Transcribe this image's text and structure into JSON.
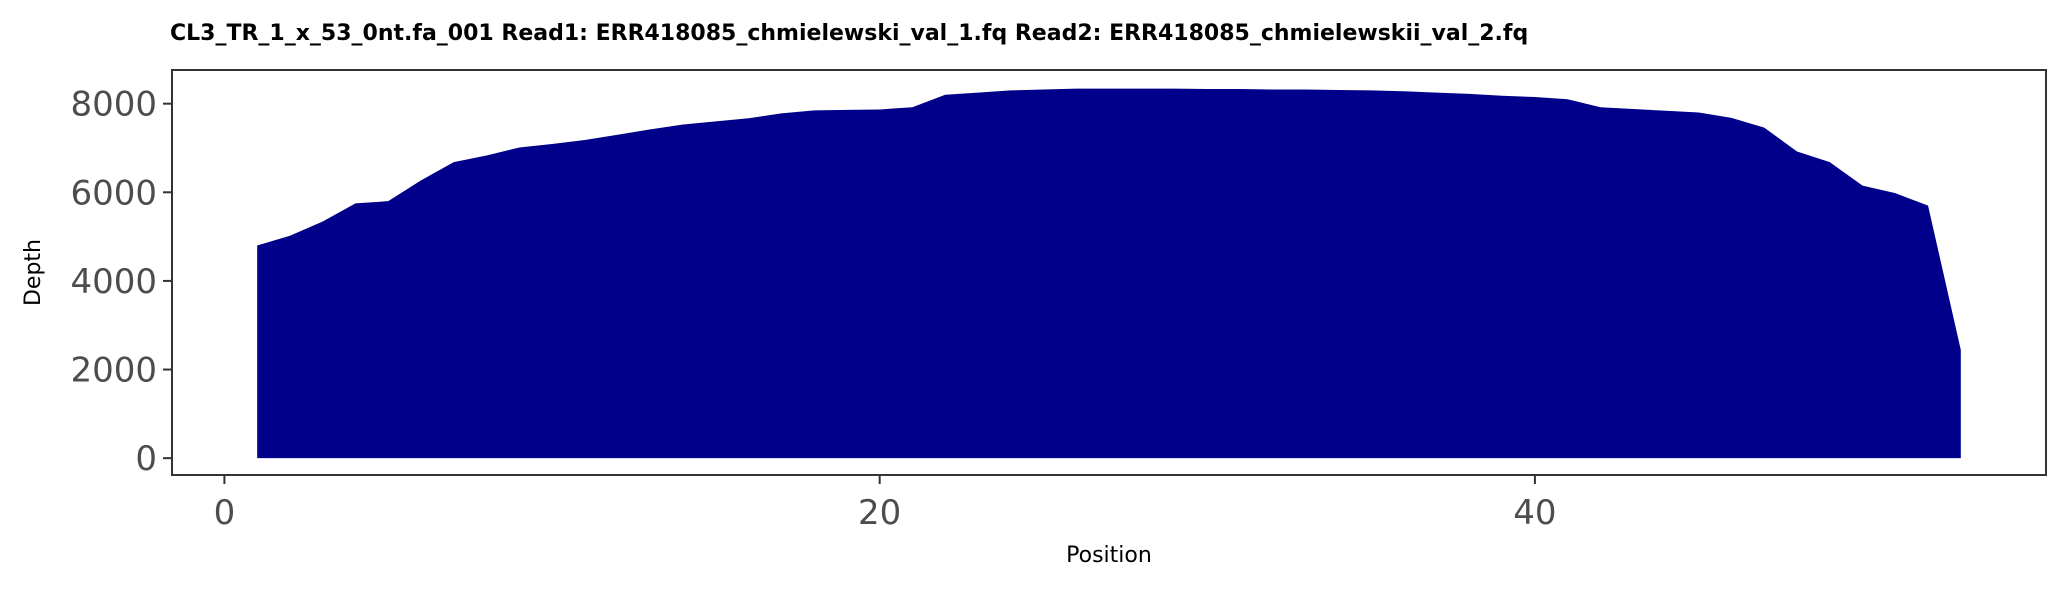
{
  "chart_data": {
    "type": "area",
    "title": "CL3_TR_1_x_53_0nt.fa_001   Read1: ERR418085_chmielewski_val_1.fq   Read2: ERR418085_chmielewskii_val_2.fq",
    "xlabel": "Position",
    "ylabel": "Depth",
    "xlim": [
      -1.6,
      55.6
    ],
    "ylim": [
      -380,
      8760
    ],
    "x_ticks": [
      0,
      20,
      40
    ],
    "y_ticks": [
      0,
      2000,
      4000,
      6000,
      8000
    ],
    "x_tick_labels": [
      "0",
      "20",
      "40"
    ],
    "y_tick_labels": [
      "0",
      "2000",
      "4000",
      "6000",
      "8000"
    ],
    "grid": false,
    "legend": "none",
    "fill_color": "#00008b",
    "series": [
      {
        "x": [
          1,
          2,
          3,
          4,
          5,
          6,
          7,
          8,
          9,
          10,
          11,
          12,
          13,
          14,
          15,
          16,
          17,
          18,
          19,
          20,
          21,
          22,
          23,
          24,
          25,
          26,
          27,
          28,
          29,
          30,
          31,
          32,
          33,
          34,
          35,
          36,
          37,
          38,
          39,
          40,
          41,
          42,
          43,
          44,
          45,
          46,
          47,
          48,
          49,
          50,
          51,
          52,
          53
        ],
        "y": [
          4800,
          5020,
          5340,
          5750,
          5800,
          6270,
          6680,
          6830,
          7010,
          7090,
          7180,
          7300,
          7420,
          7530,
          7600,
          7670,
          7780,
          7850,
          7860,
          7870,
          7920,
          8200,
          8250,
          8300,
          8320,
          8340,
          8340,
          8340,
          8340,
          8330,
          8330,
          8320,
          8320,
          8310,
          8300,
          8280,
          8250,
          8220,
          8180,
          8150,
          8100,
          7920,
          7880,
          7840,
          7800,
          7680,
          7460,
          6920,
          6680,
          6150,
          5980,
          5700,
          2440
        ]
      }
    ]
  }
}
